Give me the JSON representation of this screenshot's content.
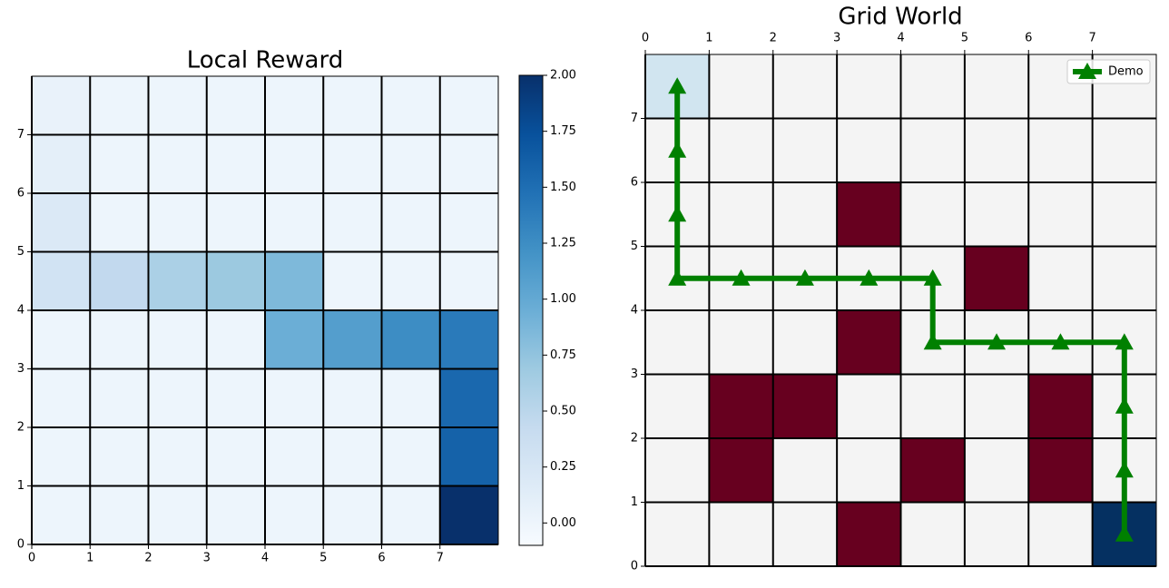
{
  "chart_data": [
    {
      "type": "heatmap",
      "title": "Local Reward",
      "z": [
        [
          0,
          0,
          0,
          0,
          0,
          0,
          0,
          2.0
        ],
        [
          0,
          0,
          0,
          0,
          0,
          0,
          0,
          1.6
        ],
        [
          0,
          0,
          0,
          0,
          0,
          0,
          0,
          1.55
        ],
        [
          0,
          0,
          0,
          0,
          0.95,
          1.1,
          1.25,
          1.4
        ],
        [
          0.3,
          0.45,
          0.6,
          0.7,
          0.85,
          0,
          0,
          0
        ],
        [
          0.2,
          0,
          0,
          0,
          0,
          0,
          0,
          0
        ],
        [
          0.1,
          0,
          0,
          0,
          0,
          0,
          0,
          0
        ],
        [
          0.05,
          0,
          0,
          0,
          0,
          0,
          0,
          0
        ]
      ],
      "colormap": "Blues",
      "clim": [
        -0.1,
        2.0
      ],
      "colorbar_ticks": [
        {
          "value": 0,
          "label": "0.00"
        },
        {
          "value": 0.25,
          "label": "0.25"
        },
        {
          "value": 0.5,
          "label": "0.50"
        },
        {
          "value": 0.75,
          "label": "0.75"
        },
        {
          "value": 1.0,
          "label": "1.00"
        },
        {
          "value": 1.25,
          "label": "1.25"
        },
        {
          "value": 1.5,
          "label": "1.50"
        },
        {
          "value": 1.75,
          "label": "1.75"
        },
        {
          "value": 2.0,
          "label": "2.00"
        }
      ],
      "xlim": [
        0,
        8
      ],
      "ylim": [
        0,
        8
      ],
      "xticks": [
        0,
        1,
        2,
        3,
        4,
        5,
        6,
        7
      ],
      "yticks": [
        0,
        1,
        2,
        3,
        4,
        5,
        6,
        7
      ],
      "grid": true
    },
    {
      "type": "gridworld",
      "title": "Grid World",
      "xlim": [
        0,
        8
      ],
      "ylim": [
        0,
        8
      ],
      "xticks": [
        0,
        1,
        2,
        3,
        4,
        5,
        6,
        7
      ],
      "yticks": [
        0,
        1,
        2,
        3,
        4,
        5,
        6,
        7
      ],
      "grid": true,
      "cell_color": "#f4f4f4",
      "obstacles": {
        "color": "#67001f",
        "cells": [
          [
            3,
            5
          ],
          [
            5,
            4
          ],
          [
            3,
            3
          ],
          [
            1,
            2
          ],
          [
            2,
            2
          ],
          [
            6,
            2
          ],
          [
            1,
            1
          ],
          [
            4,
            1
          ],
          [
            6,
            1
          ],
          [
            3,
            0
          ]
        ]
      },
      "start": {
        "color": "#d1e5f0",
        "cell": [
          0,
          7
        ]
      },
      "goal": {
        "color": "#053061",
        "cell": [
          7,
          0
        ]
      },
      "series": [
        {
          "name": "Demo",
          "color": "#008000",
          "x": [
            0.5,
            0.5,
            0.5,
            0.5,
            1.5,
            2.5,
            3.5,
            4.5,
            4.5,
            5.5,
            6.5,
            7.5,
            7.5,
            7.5,
            7.5
          ],
          "values": [
            7.5,
            6.5,
            5.5,
            4.5,
            4.5,
            4.5,
            4.5,
            4.5,
            3.5,
            3.5,
            3.5,
            3.5,
            2.5,
            1.5,
            0.5
          ]
        }
      ],
      "legend": "upper right"
    }
  ]
}
